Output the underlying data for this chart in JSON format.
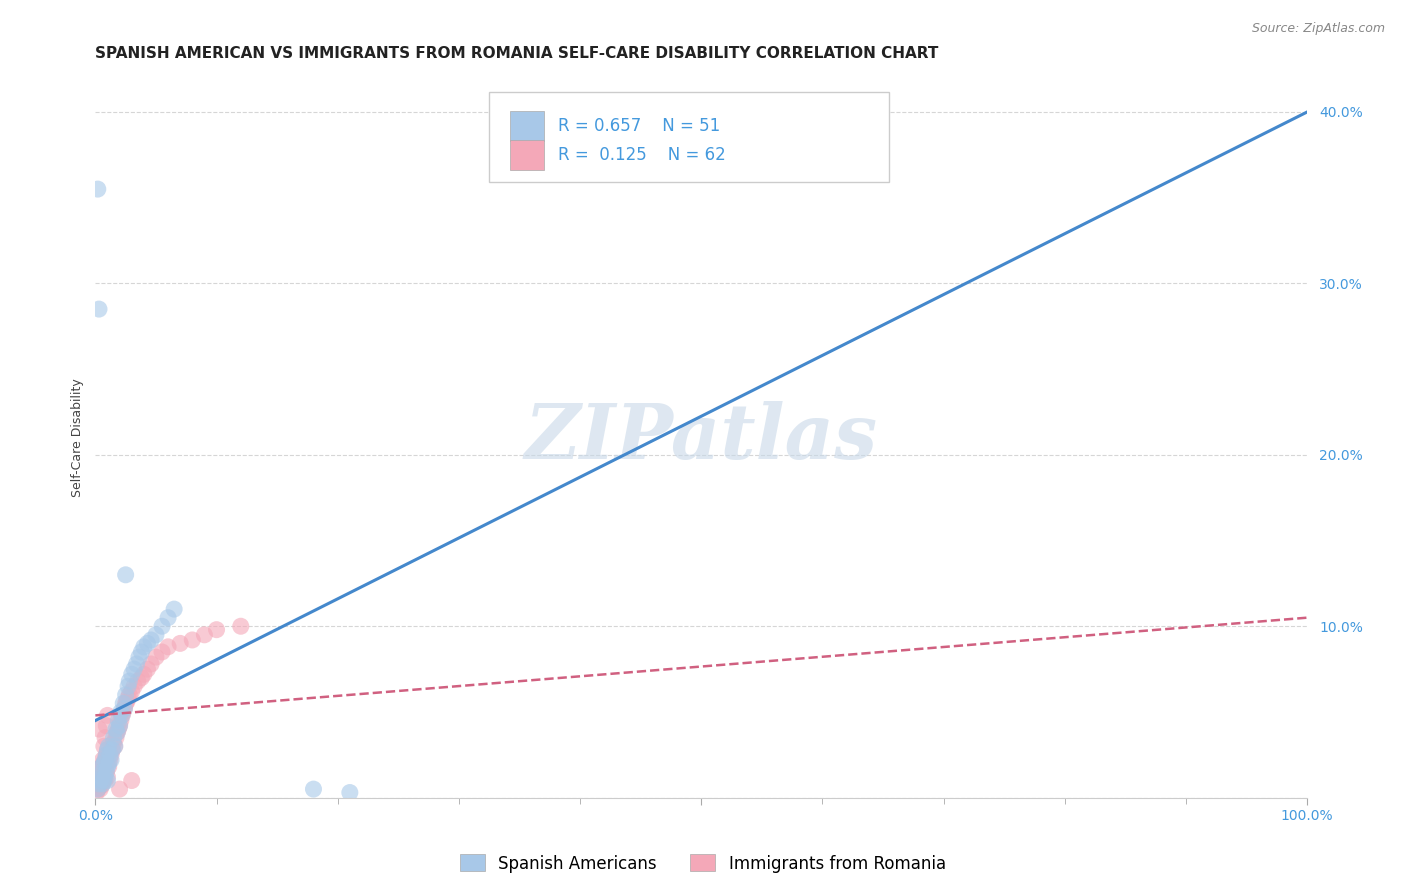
{
  "title": "SPANISH AMERICAN VS IMMIGRANTS FROM ROMANIA SELF-CARE DISABILITY CORRELATION CHART",
  "source": "Source: ZipAtlas.com",
  "ylabel": "Self-Care Disability",
  "xlim": [
    0,
    1.0
  ],
  "ylim": [
    0,
    0.42
  ],
  "yticks": [
    0.0,
    0.1,
    0.2,
    0.3,
    0.4
  ],
  "ytick_labels": [
    "",
    "10.0%",
    "20.0%",
    "30.0%",
    "40.0%"
  ],
  "xtick_positions": [
    0.0,
    0.5,
    1.0
  ],
  "xtick_labels": [
    "0.0%",
    "",
    "100.0%"
  ],
  "blue_R": 0.657,
  "blue_N": 51,
  "pink_R": 0.125,
  "pink_N": 62,
  "blue_color": "#a8c8e8",
  "pink_color": "#f4a8b8",
  "blue_line_color": "#4488cc",
  "pink_line_color": "#d06080",
  "blue_line_x": [
    0.0,
    1.0
  ],
  "blue_line_y": [
    0.045,
    0.4
  ],
  "pink_line_x": [
    0.0,
    1.0
  ],
  "pink_line_y": [
    0.048,
    0.105
  ],
  "legend_label_blue": "Spanish Americans",
  "legend_label_pink": "Immigrants from Romania",
  "watermark": "ZIPatlas",
  "blue_scatter_x": [
    0.002,
    0.003,
    0.004,
    0.005,
    0.005,
    0.006,
    0.006,
    0.007,
    0.007,
    0.008,
    0.008,
    0.009,
    0.009,
    0.01,
    0.01,
    0.01,
    0.011,
    0.011,
    0.012,
    0.013,
    0.014,
    0.015,
    0.016,
    0.017,
    0.018,
    0.019,
    0.02,
    0.021,
    0.022,
    0.023,
    0.024,
    0.025,
    0.027,
    0.028,
    0.03,
    0.032,
    0.034,
    0.036,
    0.038,
    0.04,
    0.043,
    0.046,
    0.05,
    0.055,
    0.06,
    0.065,
    0.025,
    0.003,
    0.002,
    0.18,
    0.21
  ],
  "blue_scatter_y": [
    0.005,
    0.008,
    0.01,
    0.012,
    0.018,
    0.008,
    0.015,
    0.01,
    0.02,
    0.012,
    0.022,
    0.015,
    0.025,
    0.01,
    0.018,
    0.028,
    0.02,
    0.03,
    0.025,
    0.022,
    0.028,
    0.035,
    0.03,
    0.04,
    0.038,
    0.045,
    0.042,
    0.05,
    0.048,
    0.055,
    0.052,
    0.06,
    0.065,
    0.068,
    0.072,
    0.075,
    0.078,
    0.082,
    0.085,
    0.088,
    0.09,
    0.092,
    0.095,
    0.1,
    0.105,
    0.11,
    0.13,
    0.285,
    0.355,
    0.005,
    0.003
  ],
  "pink_scatter_x": [
    0.001,
    0.002,
    0.002,
    0.003,
    0.003,
    0.004,
    0.004,
    0.005,
    0.005,
    0.006,
    0.006,
    0.007,
    0.007,
    0.008,
    0.008,
    0.009,
    0.009,
    0.01,
    0.01,
    0.011,
    0.012,
    0.013,
    0.014,
    0.015,
    0.016,
    0.017,
    0.018,
    0.019,
    0.02,
    0.021,
    0.022,
    0.023,
    0.024,
    0.025,
    0.026,
    0.027,
    0.028,
    0.03,
    0.032,
    0.035,
    0.038,
    0.04,
    0.043,
    0.046,
    0.05,
    0.055,
    0.06,
    0.07,
    0.08,
    0.09,
    0.1,
    0.12,
    0.003,
    0.004,
    0.005,
    0.006,
    0.007,
    0.008,
    0.009,
    0.01,
    0.02,
    0.03
  ],
  "pink_scatter_y": [
    0.003,
    0.005,
    0.008,
    0.006,
    0.01,
    0.008,
    0.012,
    0.007,
    0.015,
    0.01,
    0.018,
    0.012,
    0.02,
    0.01,
    0.022,
    0.015,
    0.025,
    0.012,
    0.028,
    0.018,
    0.022,
    0.025,
    0.028,
    0.032,
    0.03,
    0.035,
    0.038,
    0.04,
    0.042,
    0.045,
    0.048,
    0.05,
    0.052,
    0.055,
    0.056,
    0.058,
    0.06,
    0.062,
    0.065,
    0.068,
    0.07,
    0.072,
    0.075,
    0.078,
    0.082,
    0.085,
    0.088,
    0.09,
    0.092,
    0.095,
    0.098,
    0.1,
    0.04,
    0.005,
    0.018,
    0.022,
    0.03,
    0.035,
    0.042,
    0.048,
    0.005,
    0.01
  ],
  "title_fontsize": 11,
  "source_fontsize": 9,
  "axis_label_fontsize": 9,
  "tick_fontsize": 10,
  "legend_fontsize": 12,
  "watermark_color": "#c8d8e8",
  "watermark_fontsize": 55,
  "background_color": "#ffffff",
  "grid_color": "#cccccc"
}
